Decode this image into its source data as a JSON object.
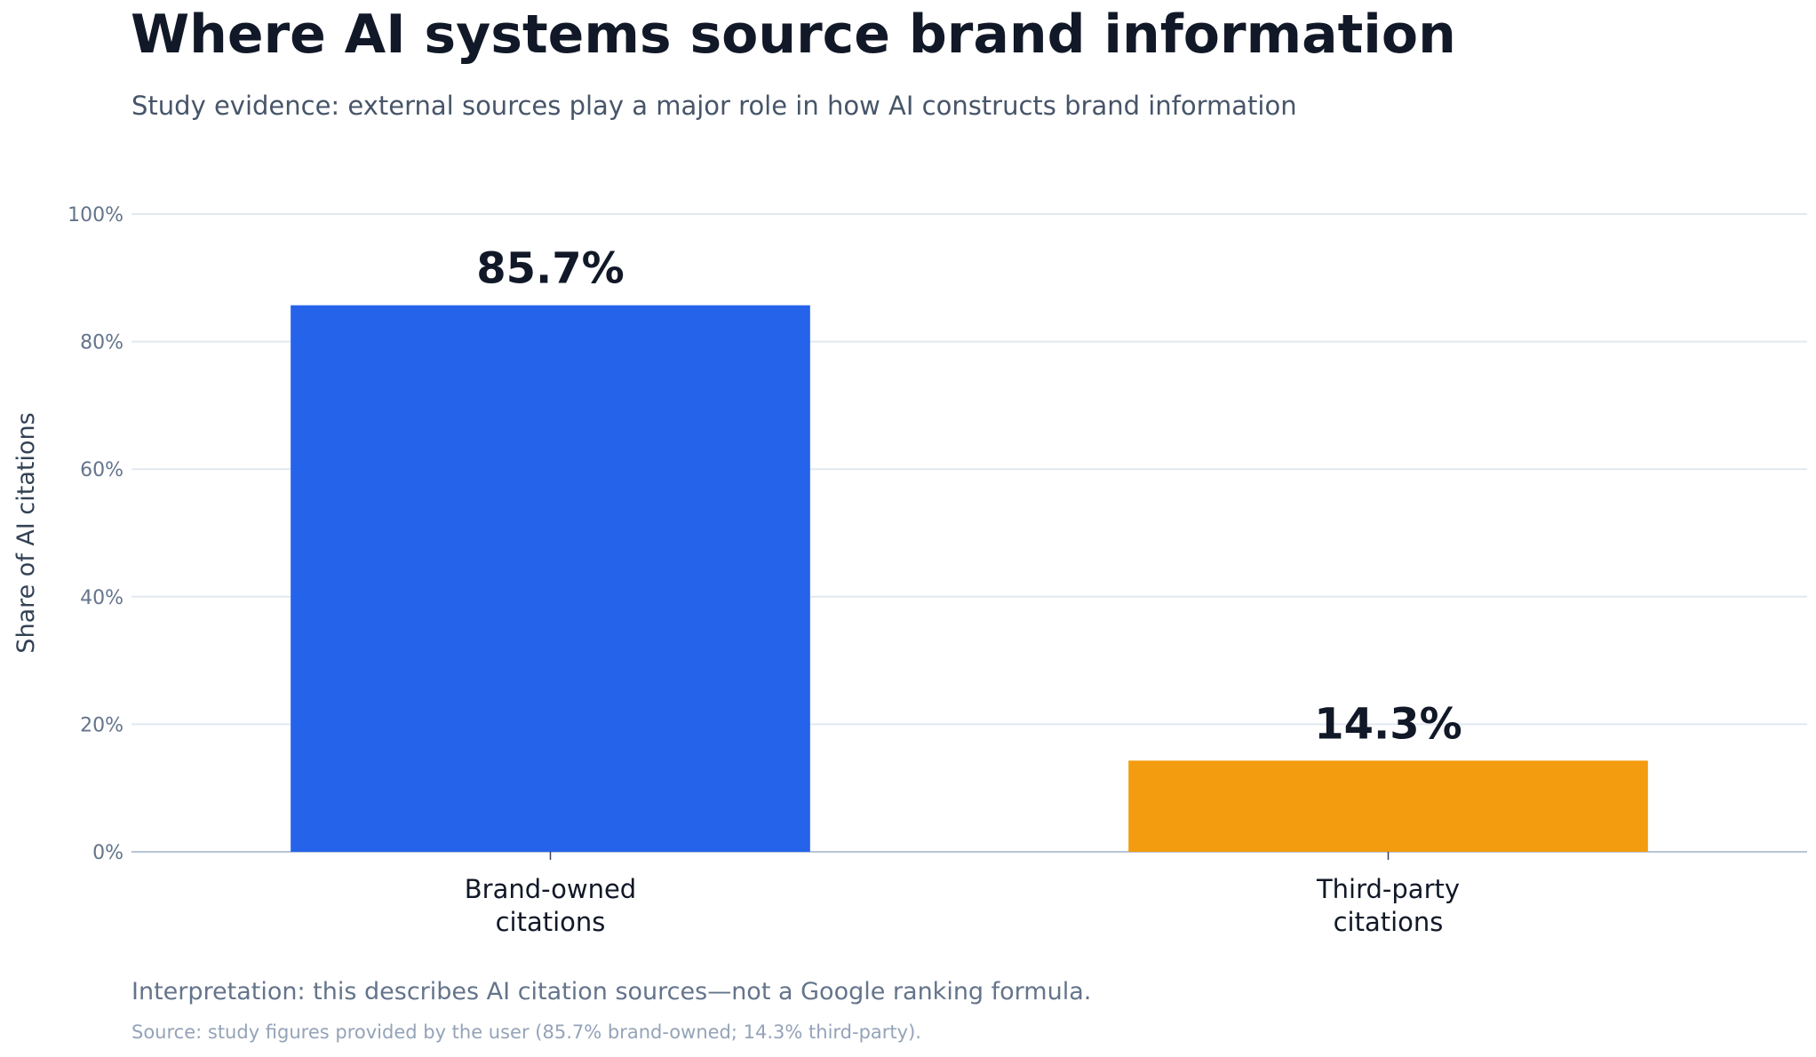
{
  "title": "Where AI systems source brand information",
  "subtitle": "Study evidence: external sources play a major role in how AI constructs brand information",
  "interpretation": "Interpretation: this describes AI citation sources—not a Google ranking formula.",
  "source": "Source: study figures provided by the user (85.7% brand-owned; 14.3% third-party).",
  "chart_data": {
    "type": "bar",
    "title": "Where AI systems source brand information",
    "subtitle": "Study evidence: external sources play a major role in how AI constructs brand information",
    "xlabel": "",
    "ylabel": "Share of AI citations",
    "categories": [
      [
        "Brand-owned",
        "citations"
      ],
      [
        "Third-party",
        "citations"
      ]
    ],
    "values": [
      85.7,
      14.3
    ],
    "value_labels": [
      "85.7%",
      "14.3%"
    ],
    "colors": [
      "#2563eb",
      "#f39c0f"
    ],
    "ylim": [
      0,
      100
    ],
    "yticks": [
      0,
      20,
      40,
      60,
      80,
      100
    ],
    "ytick_labels": [
      "0%",
      "20%",
      "40%",
      "60%",
      "80%",
      "100%"
    ],
    "grid": true,
    "legend": "none"
  }
}
